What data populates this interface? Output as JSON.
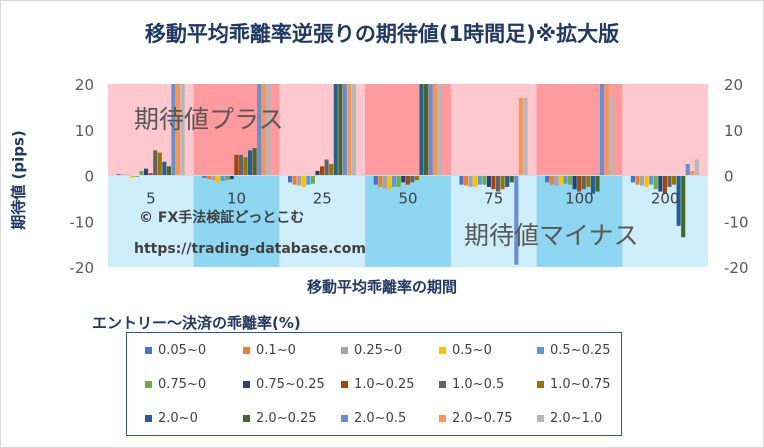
{
  "chart_data": {
    "type": "bar",
    "title": "移動平均乖離率逆張りの期待値(1時間足)※拡大版",
    "xlabel": "移動平均乖離率の期間",
    "ylabel": "期待値 (pips)",
    "ylim": [
      -20,
      20
    ],
    "yticks": [
      -20,
      -10,
      0,
      10,
      20
    ],
    "categories": [
      "5",
      "10",
      "25",
      "50",
      "75",
      "100",
      "200"
    ],
    "legend_title": "エントリー～決済の乖離率(%)",
    "annotations": {
      "plus": "期待値プラス",
      "minus": "期待値マイナス",
      "copyright": "© FX手法検証どっとこむ",
      "url": "https://trading-database.com"
    },
    "series": [
      {
        "name": "0.05~0",
        "color": "#4472c4",
        "values": [
          0.3,
          -0.5,
          -1.5,
          -2.0,
          -2.0,
          -1.5,
          -1.5
        ]
      },
      {
        "name": "0.1~0",
        "color": "#ed7d31",
        "values": [
          0.2,
          -0.8,
          -2.0,
          -2.5,
          -2.2,
          -2.0,
          -2.0
        ]
      },
      {
        "name": "0.25~0",
        "color": "#a5a5a5",
        "values": [
          0.2,
          -1.0,
          -2.2,
          -2.8,
          -2.5,
          -2.2,
          -2.2
        ]
      },
      {
        "name": "0.5~0",
        "color": "#ffc000",
        "values": [
          -0.5,
          -1.5,
          -2.5,
          -3.0,
          -2.5,
          -2.0,
          -2.5
        ]
      },
      {
        "name": "0.5~0.25",
        "color": "#5b9bd5",
        "values": [
          -0.3,
          -1.2,
          -2.0,
          -2.5,
          -2.0,
          -1.8,
          -2.0
        ]
      },
      {
        "name": "0.75~0",
        "color": "#70ad47",
        "values": [
          1.0,
          -1.0,
          -1.8,
          -2.5,
          -2.0,
          -2.0,
          -3.0
        ]
      },
      {
        "name": "0.75~0.25",
        "color": "#264478",
        "values": [
          1.5,
          -0.8,
          1.0,
          -1.5,
          -2.5,
          -3.0,
          -3.5
        ]
      },
      {
        "name": "1.0~0.25",
        "color": "#9e480e",
        "values": [
          0.5,
          4.5,
          2.0,
          -2.0,
          -3.0,
          -3.5,
          -4.0
        ]
      },
      {
        "name": "1.0~0.5",
        "color": "#636363",
        "values": [
          5.5,
          4.5,
          3.5,
          -1.5,
          -3.5,
          -3.0,
          -2.5
        ]
      },
      {
        "name": "1.0~0.75",
        "color": "#997300",
        "values": [
          5.0,
          4.0,
          2.5,
          -1.0,
          -3.0,
          -2.5,
          -2.0
        ]
      },
      {
        "name": "2.0~0",
        "color": "#255e91",
        "values": [
          3.0,
          5.5,
          20,
          20,
          -2.5,
          -4.0,
          -11
        ]
      },
      {
        "name": "2.0~0.25",
        "color": "#43682b",
        "values": [
          2.0,
          6.0,
          20,
          20,
          -1.5,
          -3.5,
          -13.5
        ]
      },
      {
        "name": "2.0~0.5",
        "color": "#698ed0",
        "values": [
          20,
          20,
          20,
          20,
          -19.5,
          20,
          2.5
        ]
      },
      {
        "name": "2.0~0.75",
        "color": "#f1975a",
        "values": [
          20,
          20,
          20,
          20,
          17,
          20,
          1.0
        ]
      },
      {
        "name": "2.0~1.0",
        "color": "#b7b7b7",
        "values": [
          20,
          20,
          20,
          20,
          17,
          17,
          3.5
        ]
      }
    ]
  }
}
